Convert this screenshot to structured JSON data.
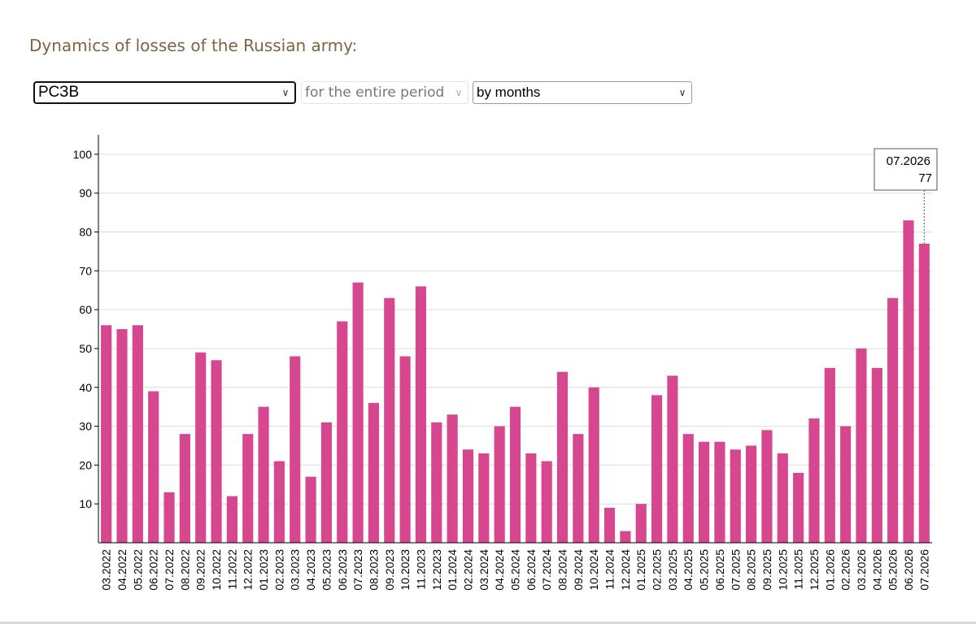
{
  "header": {
    "title": "Dynamics of losses of the Russian army:"
  },
  "filters": {
    "type": {
      "value": "РСЗВ"
    },
    "period": {
      "value": "for the entire period"
    },
    "grouping": {
      "value": "by months"
    }
  },
  "chart_data": {
    "type": "bar",
    "title": "",
    "xlabel": "",
    "ylabel": "",
    "ylim": [
      0,
      105
    ],
    "yticks": [
      10,
      20,
      30,
      40,
      50,
      60,
      70,
      80,
      90,
      100
    ],
    "grid": true,
    "bar_color": "#d6478f",
    "categories": [
      "03.2022",
      "04.2022",
      "05.2022",
      "06.2022",
      "07.2022",
      "08.2022",
      "09.2022",
      "10.2022",
      "11.2022",
      "12.2022",
      "01.2023",
      "02.2023",
      "03.2023",
      "04.2023",
      "05.2023",
      "06.2023",
      "07.2023",
      "08.2023",
      "09.2023",
      "10.2023",
      "11.2023",
      "12.2023",
      "01.2024",
      "02.2024",
      "03.2024",
      "04.2024",
      "05.2024",
      "06.2024",
      "07.2024",
      "08.2024",
      "09.2024",
      "10.2024",
      "11.2024",
      "12.2024",
      "01.2025",
      "02.2025",
      "03.2025",
      "04.2025",
      "05.2025",
      "06.2025",
      "07.2025",
      "08.2025",
      "09.2025",
      "10.2025",
      "11.2025",
      "12.2025",
      "01.2026",
      "02.2026",
      "03.2026",
      "04.2026",
      "05.2026",
      "06.2026",
      "07.2026"
    ],
    "values": [
      56,
      55,
      56,
      39,
      13,
      28,
      49,
      47,
      12,
      28,
      35,
      21,
      48,
      17,
      31,
      57,
      67,
      36,
      63,
      48,
      66,
      31,
      33,
      24,
      23,
      30,
      35,
      23,
      21,
      44,
      28,
      40,
      9,
      3,
      10,
      38,
      43,
      28,
      26,
      26,
      24,
      25,
      29,
      23,
      18,
      32,
      45,
      30,
      50,
      45,
      63,
      83,
      77
    ],
    "tooltip": {
      "category": "07.2026",
      "value": "77"
    }
  }
}
